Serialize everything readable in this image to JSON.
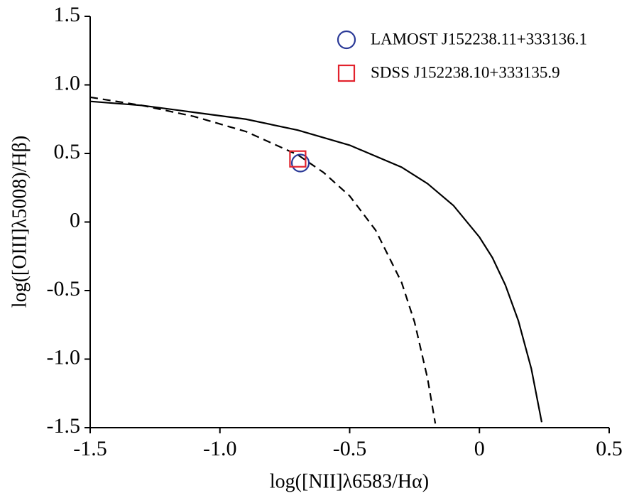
{
  "chart_data": {
    "type": "scatter",
    "xlabel": "log([NII]λ6583/Hα)",
    "ylabel": "log([OIII]λ5008)/Hβ)",
    "xlim": [
      -1.5,
      0.5
    ],
    "ylim": [
      -1.5,
      1.5
    ],
    "xticks": [
      -1.5,
      {
        "value": -1,
        "label": "-1.0"
      },
      -0.5,
      0,
      0.5
    ],
    "yticks": [
      1.5,
      {
        "value": 1,
        "label": "1.0"
      },
      0.5,
      0,
      -0.5,
      {
        "value": -1,
        "label": "-1.0"
      },
      -1.5
    ],
    "legend": "upper-right",
    "series": [
      {
        "name": "LAMOST J152238.11+333136.1",
        "color": "#2b3a97",
        "marker": "circle",
        "x": [
          -0.69
        ],
        "values": [
          0.43
        ]
      },
      {
        "name": "SDSS J152238.10+333135.9",
        "color": "#e2222c",
        "marker": "square",
        "x": [
          -0.7
        ],
        "values": [
          0.46
        ]
      }
    ],
    "curves": [
      {
        "color": "#000000",
        "dashed": false,
        "x": [
          -1.5,
          -1.3,
          -1.1,
          -0.9,
          -0.7,
          -0.5,
          -0.3,
          -0.2,
          -0.1,
          0,
          0.05,
          0.1,
          0.15,
          0.2,
          0.24
        ],
        "values": [
          0.88,
          0.85,
          0.8,
          0.75,
          0.67,
          0.56,
          0.4,
          0.28,
          0.12,
          -0.11,
          -0.26,
          -0.46,
          -0.72,
          -1.07,
          -1.46
        ]
      },
      {
        "color": "#000000",
        "dashed": true,
        "x": [
          -1.5,
          -1.3,
          -1.1,
          -0.9,
          -0.7,
          -0.6,
          -0.5,
          -0.4,
          -0.3,
          -0.25,
          -0.2,
          -0.17
        ],
        "values": [
          0.91,
          0.85,
          0.77,
          0.66,
          0.49,
          0.36,
          0.19,
          -0.06,
          -0.44,
          -0.73,
          -1.14,
          -1.47
        ]
      }
    ]
  }
}
